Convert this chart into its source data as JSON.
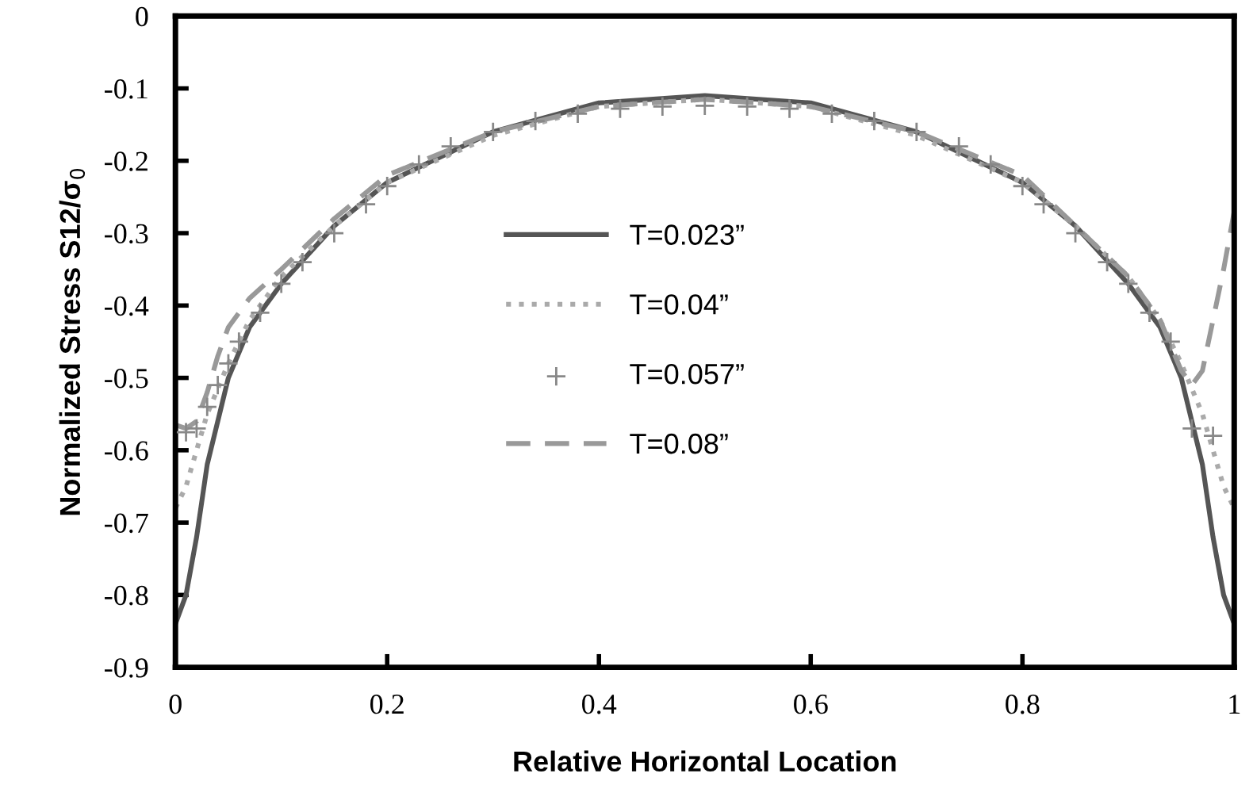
{
  "chart_data": {
    "type": "line",
    "xlabel": "Relative Horizontal Location",
    "ylabel": "Normalized Stress S12/σ$_{0}$",
    "xlim": [
      0,
      1
    ],
    "ylim": [
      -0.9,
      0
    ],
    "xticks": [
      0,
      0.2,
      0.4,
      0.6,
      0.8,
      1
    ],
    "yticks": [
      0,
      -0.1,
      -0.2,
      -0.3,
      -0.4,
      -0.5,
      -0.6,
      -0.7,
      -0.8,
      -0.9
    ],
    "grid": false,
    "legend": "center",
    "series": [
      {
        "name": "T=0.023”",
        "color": "#555555",
        "line_style": "solid",
        "marker": "none",
        "x": [
          0,
          0.01,
          0.02,
          0.03,
          0.05,
          0.07,
          0.1,
          0.15,
          0.2,
          0.3,
          0.4,
          0.5,
          0.6,
          0.7,
          0.8,
          0.85,
          0.9,
          0.93,
          0.95,
          0.97,
          0.98,
          0.99,
          1
        ],
        "values": [
          -0.84,
          -0.8,
          -0.72,
          -0.62,
          -0.5,
          -0.43,
          -0.37,
          -0.29,
          -0.23,
          -0.16,
          -0.12,
          -0.11,
          -0.12,
          -0.16,
          -0.23,
          -0.29,
          -0.37,
          -0.43,
          -0.5,
          -0.62,
          -0.72,
          -0.8,
          -0.84
        ]
      },
      {
        "name": "T=0.04”",
        "color": "#aaaaaa",
        "line_style": "dotted",
        "marker": "none",
        "x": [
          0,
          0.01,
          0.02,
          0.03,
          0.05,
          0.07,
          0.1,
          0.15,
          0.2,
          0.3,
          0.4,
          0.5,
          0.6,
          0.7,
          0.8,
          0.85,
          0.9,
          0.93,
          0.95,
          0.97,
          0.98,
          0.99,
          1
        ],
        "values": [
          -0.68,
          -0.65,
          -0.6,
          -0.55,
          -0.48,
          -0.42,
          -0.36,
          -0.29,
          -0.23,
          -0.165,
          -0.125,
          -0.115,
          -0.125,
          -0.165,
          -0.23,
          -0.29,
          -0.36,
          -0.42,
          -0.48,
          -0.55,
          -0.6,
          -0.65,
          -0.68
        ]
      },
      {
        "name": "T=0.057”",
        "type": "scatter",
        "color": "#888888",
        "marker": "cross",
        "x": [
          0.01,
          0.02,
          0.03,
          0.04,
          0.05,
          0.06,
          0.08,
          0.1,
          0.12,
          0.15,
          0.18,
          0.2,
          0.23,
          0.26,
          0.3,
          0.34,
          0.38,
          0.42,
          0.46,
          0.5,
          0.54,
          0.58,
          0.62,
          0.66,
          0.7,
          0.74,
          0.77,
          0.8,
          0.82,
          0.85,
          0.88,
          0.9,
          0.92,
          0.94,
          0.96,
          0.98
        ],
        "values": [
          -0.575,
          -0.57,
          -0.54,
          -0.51,
          -0.48,
          -0.45,
          -0.41,
          -0.37,
          -0.34,
          -0.3,
          -0.26,
          -0.235,
          -0.205,
          -0.18,
          -0.16,
          -0.145,
          -0.135,
          -0.128,
          -0.125,
          -0.124,
          -0.125,
          -0.128,
          -0.135,
          -0.145,
          -0.16,
          -0.18,
          -0.205,
          -0.235,
          -0.26,
          -0.3,
          -0.34,
          -0.37,
          -0.41,
          -0.45,
          -0.57,
          -0.58
        ]
      },
      {
        "name": "T=0.08”",
        "color": "#999999",
        "line_style": "dashed",
        "marker": "none",
        "x": [
          0,
          0.01,
          0.02,
          0.03,
          0.04,
          0.05,
          0.07,
          0.1,
          0.15,
          0.2,
          0.3,
          0.4,
          0.5,
          0.6,
          0.7,
          0.8,
          0.85,
          0.9,
          0.93,
          0.95,
          0.96,
          0.97,
          0.98,
          0.99,
          1
        ],
        "values": [
          -0.565,
          -0.57,
          -0.56,
          -0.52,
          -0.47,
          -0.43,
          -0.39,
          -0.35,
          -0.28,
          -0.22,
          -0.16,
          -0.125,
          -0.115,
          -0.125,
          -0.16,
          -0.22,
          -0.29,
          -0.36,
          -0.42,
          -0.49,
          -0.51,
          -0.49,
          -0.42,
          -0.35,
          -0.27
        ]
      }
    ]
  }
}
